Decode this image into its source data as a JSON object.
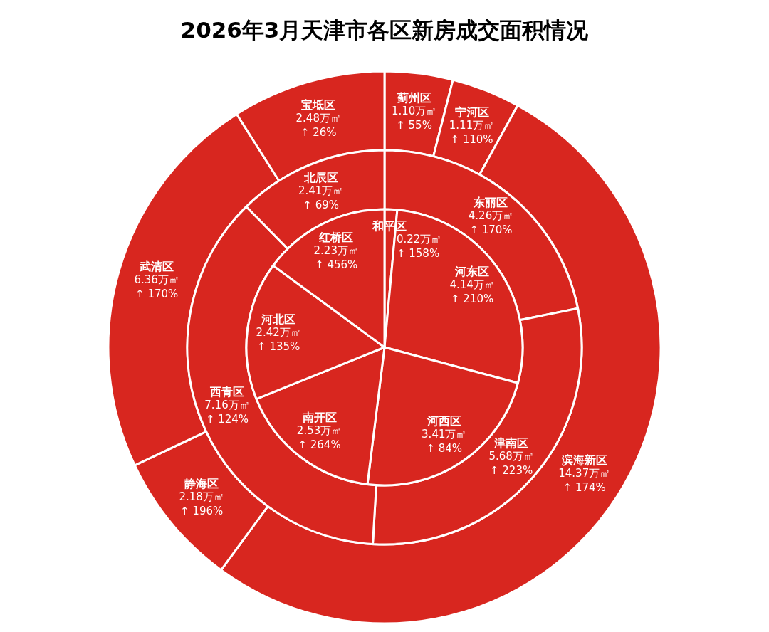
{
  "chart_data": [
    {
      "type": "donut",
      "title": "2026年3月天津市各区新房成交面积情况",
      "categories": [
        "蓟州区",
        "宁河区",
        "滨海新区",
        "静海区",
        "武清区",
        "宝坻区"
      ],
      "values": [
        1.1,
        1.11,
        14.37,
        2.18,
        6.36,
        2.48
      ],
      "value_labels": [
        "1.10万㎡\n↑ 55%",
        "1.11万㎡\n↑ 110%",
        "14.37万㎡\n↑ 174%",
        "2.18万㎡\n↑ 196%",
        "6.36万㎡\n↑ 170%",
        "2.48万㎡\n↑ 26%"
      ],
      "colors": [
        "#d8261f",
        "#d8261f",
        "#d8261f",
        "#d8261f",
        "#d8261f",
        "#d8261f"
      ]
    },
    {
      "type": "donut",
      "categories": [
        "东丽区",
        "津南区",
        "西青区",
        "北辰区"
      ],
      "values": [
        4.26,
        5.68,
        7.16,
        2.41
      ],
      "value_labels": [
        "4.26万㎡\n↑ 170%",
        "5.68万㎡\n↑ 223%",
        "7.16万㎡\n↑ 124%",
        "2.41万㎡\n↑ 69%"
      ],
      "colors": [
        "#d8261f",
        "#d8261f",
        "#d8261f",
        "#d8261f"
      ]
    },
    {
      "type": "pie",
      "categories": [
        "和平区",
        "河东区",
        "河西区",
        "南开区",
        "河北区",
        "红桥区"
      ],
      "values": [
        0.22,
        4.14,
        3.41,
        2.53,
        2.42,
        2.23
      ],
      "value_labels": [
        "0.22万㎡\n↑ 158%",
        "4.14万㎡\n↑ 210%",
        "3.41万㎡\n↑ 84%",
        "2.53万㎡\n↑ 264%",
        "2.42万㎡\n↑ 135%",
        "2.23万㎡\n↑ 456%"
      ],
      "colors": [
        "#d8261f",
        "#d8261f",
        "#d8261f",
        "#d8261f",
        "#d8261f",
        "#d8261f"
      ]
    }
  ]
}
